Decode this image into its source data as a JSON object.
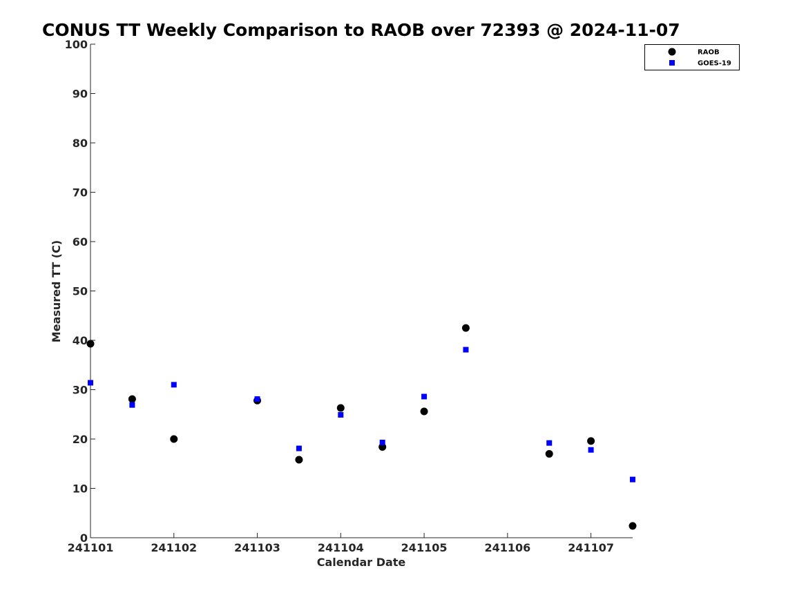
{
  "chart_data": {
    "type": "scatter",
    "title": "CONUS TT Weekly Comparison to RAOB over 72393 @ 2024-11-07",
    "xlabel": "Calendar Date",
    "ylabel": "Measured TT (C)",
    "xlim": [
      "2024-11-01",
      "2024-11-07 12:00"
    ],
    "ylim": [
      0,
      100
    ],
    "x_ticks": [
      {
        "date": "2024-11-01",
        "label": "241101"
      },
      {
        "date": "2024-11-02",
        "label": "241102"
      },
      {
        "date": "2024-11-03",
        "label": "241103"
      },
      {
        "date": "2024-11-04",
        "label": "241104"
      },
      {
        "date": "2024-11-05",
        "label": "241105"
      },
      {
        "date": "2024-11-06",
        "label": "241106"
      },
      {
        "date": "2024-11-07",
        "label": "241107"
      }
    ],
    "y_ticks": [
      0,
      10,
      20,
      30,
      40,
      50,
      60,
      70,
      80,
      90,
      100
    ],
    "grid": false,
    "legend_position": "top-right",
    "series": [
      {
        "name": "RAOB",
        "marker": "circle",
        "color": "#000000",
        "points": [
          {
            "x": "2024-11-01 00:00",
            "y": 39.3
          },
          {
            "x": "2024-11-01 12:00",
            "y": 28.1
          },
          {
            "x": "2024-11-02 00:00",
            "y": 20.0
          },
          {
            "x": "2024-11-03 00:00",
            "y": 27.8
          },
          {
            "x": "2024-11-03 12:00",
            "y": 15.8
          },
          {
            "x": "2024-11-04 00:00",
            "y": 26.3
          },
          {
            "x": "2024-11-04 12:00",
            "y": 18.4
          },
          {
            "x": "2024-11-05 00:00",
            "y": 25.6
          },
          {
            "x": "2024-11-05 12:00",
            "y": 42.5
          },
          {
            "x": "2024-11-06 12:00",
            "y": 17.0
          },
          {
            "x": "2024-11-07 00:00",
            "y": 19.6
          },
          {
            "x": "2024-11-07 12:00",
            "y": 2.4
          }
        ]
      },
      {
        "name": "GOES-19",
        "marker": "square",
        "color": "#0000ff",
        "points": [
          {
            "x": "2024-11-01 00:00",
            "y": 31.4
          },
          {
            "x": "2024-11-01 12:00",
            "y": 26.9
          },
          {
            "x": "2024-11-02 00:00",
            "y": 31.0
          },
          {
            "x": "2024-11-03 00:00",
            "y": 28.1
          },
          {
            "x": "2024-11-03 12:00",
            "y": 18.1
          },
          {
            "x": "2024-11-04 00:00",
            "y": 24.9
          },
          {
            "x": "2024-11-04 12:00",
            "y": 19.3
          },
          {
            "x": "2024-11-05 00:00",
            "y": 28.6
          },
          {
            "x": "2024-11-05 12:00",
            "y": 38.1
          },
          {
            "x": "2024-11-06 12:00",
            "y": 19.2
          },
          {
            "x": "2024-11-07 00:00",
            "y": 17.8
          },
          {
            "x": "2024-11-07 12:00",
            "y": 11.8
          }
        ]
      }
    ]
  }
}
